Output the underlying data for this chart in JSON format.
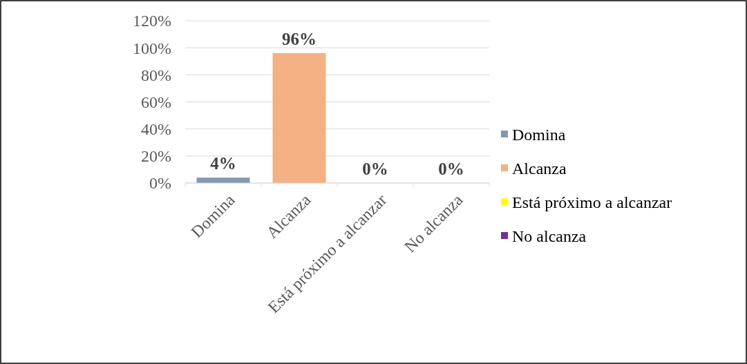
{
  "chart_data": {
    "type": "bar",
    "categories": [
      "Domina",
      "Alcanza",
      "Está próximo a alcanzar",
      "No alcanza"
    ],
    "series": [
      {
        "name": "Domina",
        "color": "#8497b0",
        "values": [
          4,
          null,
          null,
          null
        ],
        "value_labels": [
          "4%",
          null,
          null,
          null
        ]
      },
      {
        "name": "Alcanza",
        "color": "#f4b183",
        "values": [
          null,
          96,
          null,
          null
        ],
        "value_labels": [
          null,
          "96%",
          null,
          null
        ]
      },
      {
        "name": "Está próximo a alcanzar",
        "color": "#ffff00",
        "values": [
          null,
          null,
          0,
          null
        ],
        "value_labels": [
          null,
          null,
          "0%",
          null
        ]
      },
      {
        "name": "No alcanza",
        "color": "#7030a0",
        "values": [
          null,
          null,
          null,
          0
        ],
        "value_labels": [
          null,
          null,
          null,
          "0%"
        ]
      }
    ],
    "ylim": [
      0,
      120
    ],
    "yticks": [
      {
        "value": 0,
        "label": "0%"
      },
      {
        "value": 20,
        "label": "20%"
      },
      {
        "value": 40,
        "label": "40%"
      },
      {
        "value": 60,
        "label": "60%"
      },
      {
        "value": 80,
        "label": "80%"
      },
      {
        "value": 100,
        "label": "100%"
      },
      {
        "value": 120,
        "label": "120%"
      }
    ],
    "grid": "y",
    "legend": "right"
  }
}
